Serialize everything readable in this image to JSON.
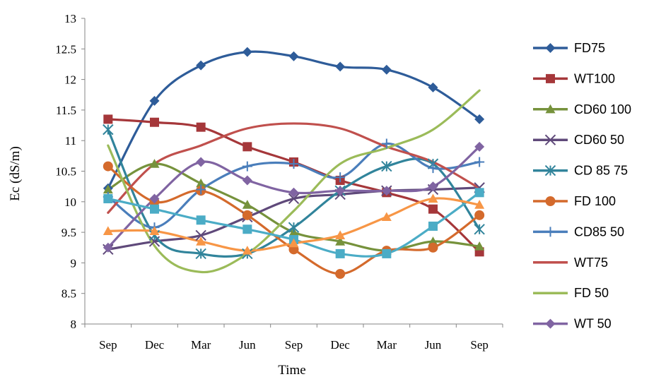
{
  "chart_data": {
    "type": "line",
    "smooth": true,
    "title": "",
    "xlabel": "Time",
    "ylabel": "Ec (dS/m)",
    "ylim": [
      8,
      13
    ],
    "yticks": [
      8,
      8.5,
      9,
      9.5,
      10,
      10.5,
      11,
      11.5,
      12,
      12.5,
      13
    ],
    "categories": [
      "Sep",
      "Dec",
      "Mar",
      "Jun",
      "Sep",
      "Dec",
      "Mar",
      "Jun",
      "Sep"
    ],
    "legend_position": "right",
    "grid": false,
    "series": [
      {
        "name": "FD75",
        "color": "#2E5C99",
        "marker": "diamond",
        "values": [
          10.22,
          11.65,
          12.23,
          12.45,
          12.38,
          12.21,
          12.16,
          11.87,
          11.35
        ]
      },
      {
        "name": "WT100",
        "color": "#A5373A",
        "marker": "square",
        "values": [
          11.35,
          11.3,
          11.22,
          10.9,
          10.65,
          10.35,
          10.15,
          9.88,
          9.18
        ]
      },
      {
        "name": "CD60 100",
        "color": "#76923C",
        "marker": "triangle",
        "values": [
          10.2,
          10.62,
          10.3,
          9.95,
          9.5,
          9.35,
          9.2,
          9.35,
          9.27
        ]
      },
      {
        "name": "CD60 50",
        "color": "#5F497A",
        "marker": "x",
        "values": [
          9.22,
          9.35,
          9.45,
          9.75,
          10.05,
          10.12,
          10.18,
          10.2,
          10.23
        ]
      },
      {
        "name": "CD 85 75",
        "color": "#31849B",
        "marker": "star",
        "values": [
          11.18,
          9.45,
          9.15,
          9.15,
          9.58,
          10.18,
          10.58,
          10.62,
          9.55
        ]
      },
      {
        "name": "FD 100",
        "color": "#D46A2C",
        "marker": "circle",
        "values": [
          10.58,
          10.0,
          10.18,
          9.78,
          9.22,
          8.82,
          9.2,
          9.25,
          9.78
        ]
      },
      {
        "name": "CD85 50",
        "color": "#4A7EBB",
        "marker": "plus",
        "values": [
          10.08,
          9.58,
          10.2,
          10.58,
          10.62,
          10.4,
          10.95,
          10.55,
          10.65
        ]
      },
      {
        "name": "WT75",
        "color": "#C0504D",
        "marker": "none",
        "values": [
          9.82,
          10.62,
          10.92,
          11.2,
          11.28,
          11.2,
          10.9,
          10.65,
          10.22
        ]
      },
      {
        "name": "FD 50",
        "color": "#9BBB59",
        "marker": "none",
        "values": [
          10.92,
          9.28,
          8.85,
          9.15,
          9.85,
          10.62,
          10.88,
          11.18,
          11.82
        ]
      },
      {
        "name": "WT 50",
        "color": "#8064A2",
        "marker": "diamond",
        "values": [
          9.25,
          10.05,
          10.65,
          10.35,
          10.15,
          10.18,
          10.18,
          10.25,
          10.9
        ]
      },
      {
        "name": "",
        "color": "#4BACC6",
        "marker": "square",
        "values": [
          10.05,
          9.88,
          9.7,
          9.55,
          9.38,
          9.15,
          9.15,
          9.6,
          10.15
        ]
      },
      {
        "name": "",
        "color": "#F79646",
        "marker": "triangle",
        "values": [
          9.52,
          9.52,
          9.35,
          9.2,
          9.32,
          9.45,
          9.75,
          10.05,
          9.95
        ]
      }
    ]
  }
}
